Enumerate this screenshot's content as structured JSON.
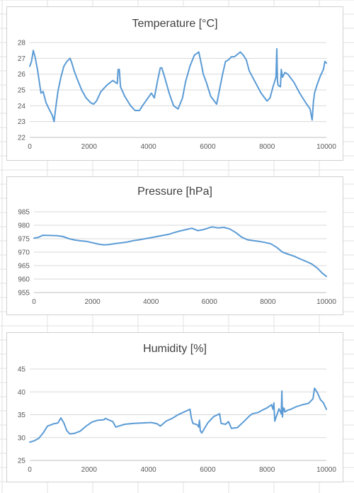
{
  "colors": {
    "series": "#5b9bd5",
    "grid": "#d9d9d9",
    "axis": "#bfbfbf",
    "text": "#595959",
    "cells": "#e2e2e2"
  },
  "chart_data": [
    {
      "type": "line",
      "title": "Temperature [°C]",
      "xlabel": "",
      "ylabel": "",
      "xlim": [
        0,
        10000
      ],
      "ylim": [
        22,
        28
      ],
      "xticks": [
        0,
        2000,
        4000,
        6000,
        8000,
        10000
      ],
      "yticks": [
        22,
        23,
        24,
        25,
        26,
        27,
        28
      ],
      "grid": "horizontal",
      "series": [
        {
          "x": [
            0,
            60,
            120,
            180,
            260,
            380,
            450,
            550,
            650,
            760,
            820,
            870,
            950,
            1050,
            1150,
            1250,
            1360,
            1420,
            1500,
            1600,
            1750,
            1900,
            2050,
            2150,
            2250,
            2400,
            2600,
            2800,
            2950,
            2980,
            3020,
            3060,
            3200,
            3400,
            3550,
            3700,
            3800,
            3950,
            4100,
            4200,
            4300,
            4400,
            4450,
            4550,
            4700,
            4850,
            5000,
            5150,
            5250,
            5400,
            5550,
            5700,
            5800,
            5850,
            5950,
            6100,
            6300,
            6500,
            6600,
            6700,
            6800,
            6900,
            7100,
            7200,
            7300,
            7400,
            7600,
            7800,
            8000,
            8100,
            8200,
            8300,
            8330,
            8350,
            8370,
            8450,
            8480,
            8520,
            8600,
            8700,
            8900,
            9100,
            9300,
            9450,
            9500,
            9520,
            9560,
            9600,
            9700,
            9800,
            9900,
            9950,
            10000
          ],
          "y": [
            26.5,
            26.8,
            27.5,
            27.1,
            26.3,
            24.8,
            24.9,
            24.2,
            23.8,
            23.4,
            23.0,
            23.8,
            24.9,
            25.8,
            26.5,
            26.8,
            27.0,
            26.7,
            26.2,
            25.7,
            25.0,
            24.5,
            24.2,
            24.1,
            24.3,
            24.9,
            25.3,
            25.6,
            25.4,
            26.3,
            26.3,
            25.2,
            24.6,
            24.0,
            23.7,
            23.7,
            24.0,
            24.4,
            24.8,
            24.5,
            25.5,
            26.4,
            26.4,
            25.8,
            24.8,
            24.0,
            23.8,
            24.5,
            25.5,
            26.5,
            27.2,
            27.4,
            26.5,
            26.0,
            25.5,
            24.6,
            24.1,
            26.0,
            26.8,
            26.9,
            27.1,
            27.1,
            27.4,
            27.2,
            26.9,
            26.2,
            25.5,
            24.8,
            24.3,
            24.5,
            25.2,
            25.8,
            27.6,
            25.6,
            25.3,
            25.2,
            26.3,
            25.8,
            26.1,
            26.0,
            25.5,
            24.8,
            24.2,
            23.8,
            23.3,
            23.1,
            24.2,
            24.8,
            25.4,
            25.9,
            26.3,
            26.8,
            26.7
          ]
        }
      ]
    },
    {
      "type": "line",
      "title": "Pressure [hPa]",
      "xlabel": "",
      "ylabel": "",
      "xlim": [
        0,
        10000
      ],
      "ylim": [
        955,
        985
      ],
      "xticks": [
        0,
        2000,
        4000,
        6000,
        8000,
        10000
      ],
      "yticks": [
        955,
        960,
        965,
        970,
        975,
        980,
        985
      ],
      "grid": "horizontal",
      "series": [
        {
          "x": [
            0,
            150,
            300,
            500,
            800,
            1000,
            1200,
            1400,
            1600,
            1800,
            2000,
            2200,
            2400,
            2600,
            2800,
            3000,
            3200,
            3400,
            3600,
            3800,
            4000,
            4200,
            4400,
            4600,
            4800,
            5000,
            5200,
            5400,
            5600,
            5800,
            6000,
            6100,
            6300,
            6500,
            6700,
            6900,
            7100,
            7300,
            7500,
            7700,
            7900,
            8100,
            8300,
            8500,
            8700,
            8900,
            9100,
            9300,
            9500,
            9700,
            9850,
            10000
          ],
          "y": [
            975.2,
            975.5,
            976.3,
            976.2,
            976.1,
            975.8,
            975.0,
            974.5,
            974.2,
            974.0,
            973.5,
            973.0,
            972.7,
            972.9,
            973.2,
            973.5,
            973.8,
            974.3,
            974.6,
            975.0,
            975.4,
            975.8,
            976.2,
            976.6,
            977.3,
            977.9,
            978.4,
            978.9,
            978.0,
            978.4,
            979.1,
            979.4,
            979.0,
            979.2,
            978.6,
            977.3,
            975.6,
            974.6,
            974.3,
            974.0,
            973.6,
            973.1,
            971.8,
            970.0,
            969.2,
            968.5,
            967.5,
            966.6,
            965.6,
            964.0,
            962.3,
            961.0
          ]
        }
      ]
    },
    {
      "type": "line",
      "title": "Humidity [%]",
      "xlabel": "",
      "ylabel": "",
      "xlim": [
        0,
        10000
      ],
      "ylim": [
        25,
        45
      ],
      "xticks": [
        0,
        2000,
        4000,
        6000,
        8000,
        10000
      ],
      "yticks": [
        25,
        30,
        35,
        40,
        45
      ],
      "grid": "horizontal",
      "series": [
        {
          "x": [
            0,
            150,
            300,
            450,
            600,
            800,
            950,
            1050,
            1150,
            1250,
            1350,
            1500,
            1700,
            1900,
            2100,
            2300,
            2500,
            2550,
            2650,
            2800,
            2900,
            3000,
            3200,
            3500,
            3800,
            4100,
            4300,
            4400,
            4600,
            4800,
            5000,
            5200,
            5400,
            5450,
            5500,
            5650,
            5700,
            5720,
            5750,
            5800,
            6000,
            6200,
            6400,
            6450,
            6600,
            6700,
            6800,
            7000,
            7200,
            7400,
            7500,
            7700,
            7900,
            8000,
            8150,
            8200,
            8230,
            8260,
            8400,
            8480,
            8500,
            8520,
            8540,
            8560,
            8580,
            8600,
            8700,
            8800,
            9000,
            9200,
            9400,
            9550,
            9600,
            9700,
            9800,
            9900,
            10000
          ],
          "y": [
            29.0,
            29.3,
            29.8,
            31.0,
            32.5,
            33.0,
            33.2,
            34.3,
            33.2,
            31.5,
            30.8,
            30.9,
            31.4,
            32.5,
            33.4,
            33.8,
            33.9,
            34.2,
            33.9,
            33.5,
            32.3,
            32.5,
            32.9,
            33.1,
            33.2,
            33.3,
            33.0,
            32.5,
            33.6,
            34.2,
            35.0,
            35.6,
            36.2,
            34.2,
            33.1,
            32.8,
            32.3,
            33.8,
            31.5,
            31.0,
            33.2,
            34.6,
            35.2,
            33.1,
            32.9,
            33.5,
            32.0,
            32.2,
            33.4,
            34.7,
            35.2,
            35.5,
            36.2,
            36.5,
            37.2,
            36.2,
            37.6,
            33.6,
            36.3,
            35.2,
            40.2,
            34.5,
            36.5,
            35.9,
            36.4,
            35.6,
            36.0,
            36.2,
            36.8,
            37.2,
            37.5,
            38.5,
            40.8,
            39.8,
            38.3,
            37.6,
            36.2
          ]
        }
      ]
    }
  ]
}
